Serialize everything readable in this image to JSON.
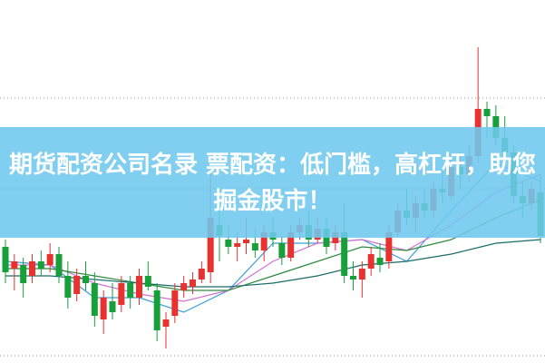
{
  "chart_data": {
    "type": "candlestick",
    "title": "期货配资公司名录 票配资：低门槛，高杠杆，助您掘金股市！",
    "up_color": "#e8322f",
    "down_color": "#17a03a",
    "ylim": [
      0,
      100
    ],
    "open": [
      32,
      26,
      27,
      24,
      28,
      27,
      30,
      24,
      19,
      24,
      22,
      12,
      17,
      16,
      22,
      18,
      24,
      20,
      10,
      13,
      20,
      21,
      23,
      25,
      38,
      34,
      32,
      33,
      33,
      31,
      36,
      33,
      29,
      36,
      38,
      34,
      37,
      33,
      36,
      24,
      23,
      26,
      29,
      28,
      36,
      42,
      40,
      44,
      42,
      48,
      46,
      54,
      52,
      57,
      70,
      68,
      62,
      58,
      46,
      44,
      47
    ],
    "high": [
      34,
      30,
      29,
      30,
      31,
      33,
      32,
      28,
      26,
      28,
      25,
      20,
      22,
      24,
      24,
      26,
      28,
      22,
      14,
      22,
      24,
      25,
      28,
      52,
      42,
      38,
      36,
      40,
      37,
      38,
      40,
      35,
      38,
      40,
      42,
      40,
      40,
      38,
      44,
      28,
      28,
      32,
      33,
      38,
      44,
      48,
      46,
      48,
      50,
      54,
      56,
      58,
      60,
      87,
      72,
      71,
      68,
      60,
      50,
      50,
      52
    ],
    "low": [
      22,
      20,
      18,
      22,
      24,
      25,
      22,
      15,
      17,
      20,
      10,
      8,
      12,
      14,
      15,
      16,
      20,
      6,
      4,
      11,
      18,
      19,
      22,
      22,
      28,
      30,
      28,
      30,
      29,
      28,
      32,
      27,
      28,
      34,
      32,
      33,
      30,
      31,
      22,
      20,
      18,
      24,
      25,
      26,
      35,
      38,
      36,
      40,
      40,
      44,
      45,
      48,
      50,
      55,
      62,
      60,
      55,
      44,
      40,
      42,
      33
    ],
    "close": [
      25,
      28,
      22,
      28,
      26,
      30,
      24,
      18,
      24,
      22,
      13,
      18,
      14,
      22,
      18,
      24,
      21,
      9,
      12,
      20,
      22,
      23,
      26,
      40,
      35,
      32,
      33,
      34,
      31,
      36,
      34,
      29,
      36,
      38,
      34,
      37,
      32,
      36,
      24,
      23,
      26,
      30,
      27,
      36,
      42,
      40,
      44,
      42,
      48,
      47,
      54,
      52,
      57,
      70,
      68,
      62,
      58,
      46,
      44,
      48,
      35
    ],
    "lines": [
      {
        "color": "#3a9fd8",
        "x": [
          0,
          5,
          10,
          15,
          20,
          25,
          30,
          35,
          40,
          45,
          50,
          55,
          60
        ],
        "values": [
          28,
          27,
          18,
          18,
          14,
          20,
          33,
          33,
          34,
          28,
          42,
          55,
          50
        ]
      },
      {
        "color": "#d36fd3",
        "x": [
          0,
          5,
          10,
          15,
          20,
          25,
          30,
          35,
          40,
          45,
          50,
          55,
          60
        ],
        "values": [
          27,
          27,
          22,
          19,
          17,
          20,
          28,
          33,
          34,
          31,
          38,
          47,
          52
        ]
      },
      {
        "color": "#2e8b3e",
        "x": [
          0,
          5,
          10,
          15,
          20,
          25,
          30,
          35,
          40,
          45,
          50,
          55,
          60
        ],
        "values": [
          26,
          26,
          24,
          22,
          20,
          20,
          24,
          28,
          32,
          31,
          34,
          40,
          45
        ]
      },
      {
        "color": "#1b6b6b",
        "x": [
          0,
          5,
          10,
          15,
          20,
          25,
          30,
          35,
          40,
          45,
          50,
          55,
          60
        ],
        "values": [
          24,
          24,
          23,
          22,
          21,
          21,
          22,
          24,
          27,
          28,
          30,
          33,
          34
        ]
      }
    ]
  }
}
